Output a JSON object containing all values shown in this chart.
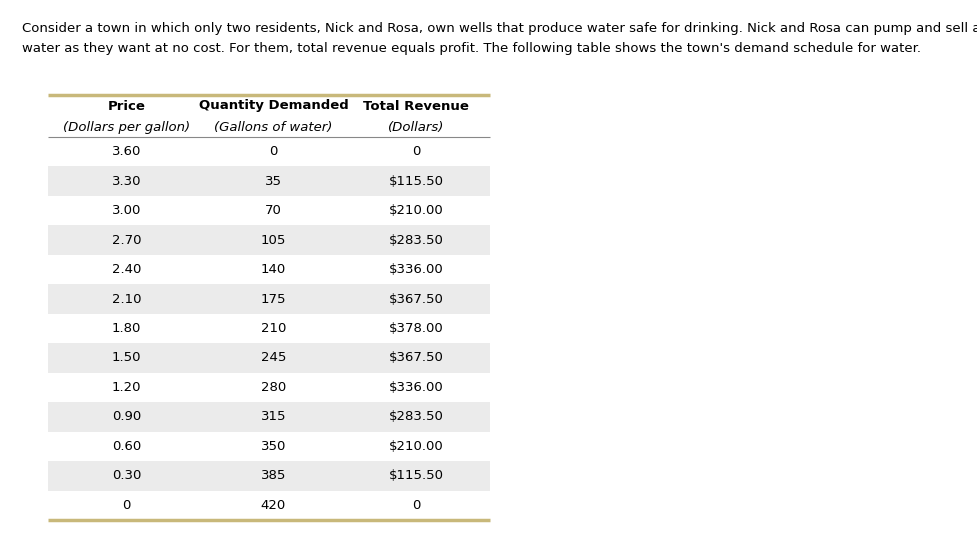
{
  "description_line1": "Consider a town in which only two residents, Nick and Rosa, own wells that produce water safe for drinking. Nick and Rosa can pump and sell as much",
  "description_line2": "water as they want at no cost. For them, total revenue equals profit. The following table shows the town's demand schedule for water.",
  "col_headers_line1": [
    "Price",
    "Quantity Demanded",
    "Total Revenue"
  ],
  "col_headers_line2": [
    "(Dollars per gallon)",
    "(Gallons of water)",
    "(Dollars)"
  ],
  "rows": [
    [
      "3.60",
      "0",
      "0"
    ],
    [
      "3.30",
      "35",
      "$115.50"
    ],
    [
      "3.00",
      "70",
      "$210.00"
    ],
    [
      "2.70",
      "105",
      "$283.50"
    ],
    [
      "2.40",
      "140",
      "$336.00"
    ],
    [
      "2.10",
      "175",
      "$367.50"
    ],
    [
      "1.80",
      "210",
      "$378.00"
    ],
    [
      "1.50",
      "245",
      "$367.50"
    ],
    [
      "1.20",
      "280",
      "$336.00"
    ],
    [
      "0.90",
      "315",
      "$283.50"
    ],
    [
      "0.60",
      "350",
      "$210.00"
    ],
    [
      "0.30",
      "385",
      "$115.50"
    ],
    [
      "0",
      "420",
      "0"
    ]
  ],
  "shaded_rows": [
    1,
    3,
    5,
    7,
    9,
    11
  ],
  "border_color": "#c8b87a",
  "shaded_row_color": "#ebebeb",
  "white_row_color": "#ffffff",
  "bg_color": "#ffffff",
  "text_color": "#000000",
  "header_line_color": "#888888",
  "font_size_desc": 9.5,
  "font_size_header1": 9.5,
  "font_size_header2": 9.5,
  "font_size_data": 9.5,
  "fig_width": 9.77,
  "fig_height": 5.38,
  "dpi": 100
}
